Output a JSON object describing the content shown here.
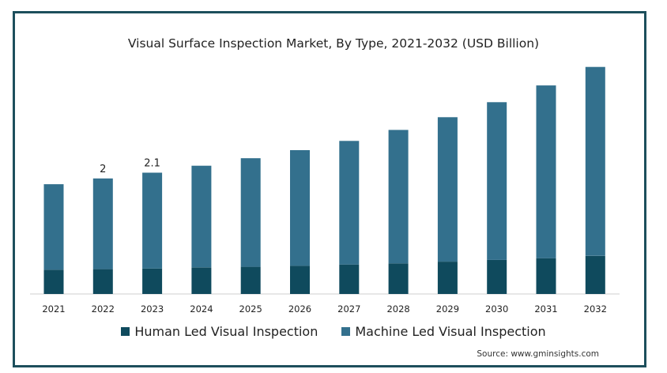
{
  "chart_data": {
    "type": "bar",
    "stacked": true,
    "title": "Visual Surface Inspection Market, By Type, 2021-2032 (USD Billion)",
    "categories": [
      "2021",
      "2022",
      "2023",
      "2024",
      "2025",
      "2026",
      "2027",
      "2028",
      "2029",
      "2030",
      "2031",
      "2032"
    ],
    "series": [
      {
        "name": "Human Led Visual Inspection",
        "color": "#0f4a5d",
        "values": [
          0.42,
          0.43,
          0.44,
          0.46,
          0.47,
          0.49,
          0.51,
          0.53,
          0.56,
          0.59,
          0.62,
          0.66
        ]
      },
      {
        "name": "Machine Led Visual Inspection",
        "color": "#33708d",
        "values": [
          1.48,
          1.57,
          1.66,
          1.76,
          1.88,
          2.0,
          2.14,
          2.31,
          2.5,
          2.73,
          2.99,
          3.27
        ]
      }
    ],
    "data_labels": [
      {
        "category": "2022",
        "text": "2"
      },
      {
        "category": "2023",
        "text": "2.1"
      }
    ],
    "ylim": [
      0,
      4.2
    ],
    "grid": false,
    "legend_position": "bottom"
  },
  "source": "Source: www.gminsights.com"
}
